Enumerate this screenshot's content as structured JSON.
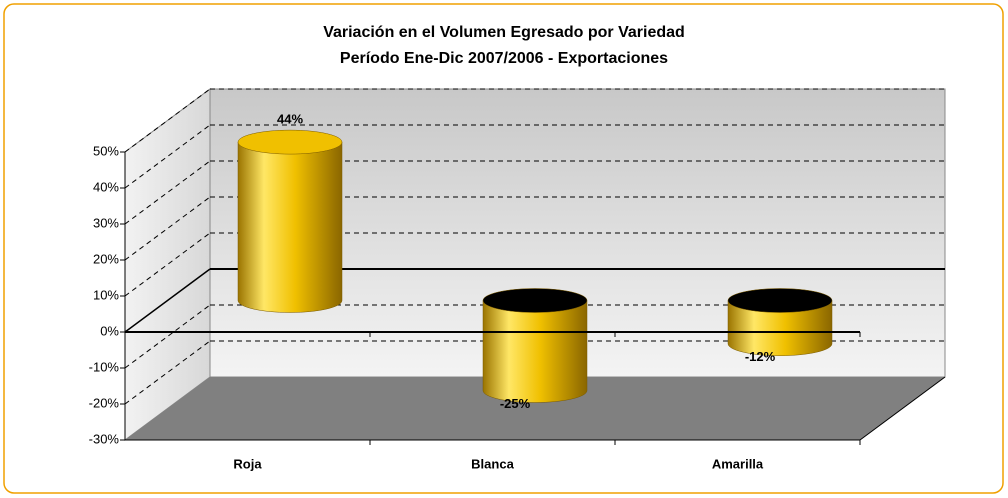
{
  "chart_data": {
    "type": "bar3d",
    "title": "Variación en el Volumen Egresado por Variedad",
    "subtitle": "Período Ene-Dic 2007/2006 - Exportaciones",
    "categories": [
      "Roja",
      "Blanca",
      "Amarilla"
    ],
    "values": [
      44,
      -25,
      -12
    ],
    "value_labels": [
      "44%",
      "-25%",
      "-12%"
    ],
    "color": "#f0c000",
    "ylim": [
      -30,
      50
    ],
    "yticks": [
      {
        "value": -30,
        "label": "-30%"
      },
      {
        "value": -20,
        "label": "-20%"
      },
      {
        "value": -10,
        "label": "-10%"
      },
      {
        "value": 0,
        "label": "0%"
      },
      {
        "value": 10,
        "label": "10%"
      },
      {
        "value": 20,
        "label": "20%"
      },
      {
        "value": 30,
        "label": "30%"
      },
      {
        "value": 40,
        "label": "40%"
      },
      {
        "value": 50,
        "label": "50%"
      }
    ],
    "grid": true
  }
}
